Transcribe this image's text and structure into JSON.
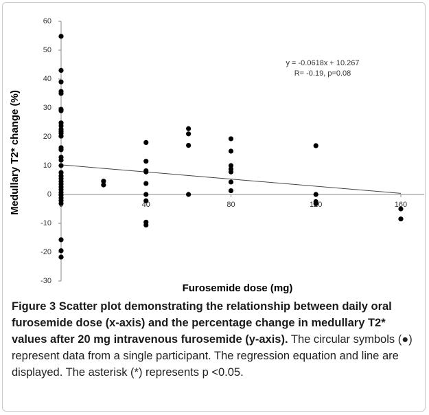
{
  "chart_data": {
    "type": "scatter",
    "xlabel": "Furosemide dose (mg)",
    "ylabel": "Medullary T2* change (%)",
    "annotations": [
      "y = -0.0618x + 10.267",
      "R= -0.19, p=0.08"
    ],
    "trendline": {
      "slope": -0.0618,
      "intercept": 10.267,
      "xrange": [
        0,
        160
      ]
    },
    "color": "#000000",
    "x": [
      0,
      0,
      0,
      0,
      0,
      0,
      0,
      0,
      0,
      0,
      0,
      0,
      0,
      0,
      0,
      0,
      0,
      0,
      0,
      0,
      0,
      0,
      0,
      0,
      0,
      0,
      0,
      0,
      0,
      0,
      0,
      0,
      0,
      20,
      20,
      40,
      40,
      40,
      40,
      40,
      40,
      40,
      40,
      40,
      60,
      60,
      60,
      60,
      80,
      80,
      80,
      80,
      80,
      80,
      80,
      120,
      120,
      120,
      120,
      160,
      160
    ],
    "y": [
      54.8,
      43,
      39,
      35.7,
      35,
      29.5,
      29,
      24.8,
      23.8,
      22.6,
      21.9,
      21.2,
      20.2,
      16.2,
      15.5,
      12.9,
      11.9,
      10,
      7.6,
      6.4,
      5.5,
      4.5,
      3.6,
      2.6,
      1.7,
      0.7,
      -0.2,
      -1.2,
      -2.1,
      -3.1,
      -15.7,
      -19.5,
      -21.7,
      4.6,
      3.3,
      18,
      11.5,
      8.2,
      7.8,
      3.8,
      0,
      -2.2,
      -9.6,
      -10.6,
      22.8,
      21,
      17,
      0,
      19.3,
      15,
      10,
      8.8,
      7.8,
      4.3,
      1.3,
      16.9,
      0,
      -2.5,
      -3.2,
      -5,
      -8.5
    ],
    "xlim": [
      0,
      171
    ],
    "ylim": [
      -30,
      60
    ],
    "xticks": [
      0,
      40,
      80,
      120,
      160
    ],
    "yticks": [
      -30,
      -20,
      -10,
      0,
      10,
      20,
      30,
      40,
      50,
      60
    ]
  },
  "caption": {
    "title": "Figure 3 Scatter plot demonstrating the relationship between daily oral furosemide dose (x-axis) and the percentage change in medullary T2* values after 20 mg intravenous furosemide (y-axis).",
    "text": "The circular symbols (●) represent data from a single participant. The regression equation and line are displayed. The asterisk (*) represents p <0.05."
  }
}
